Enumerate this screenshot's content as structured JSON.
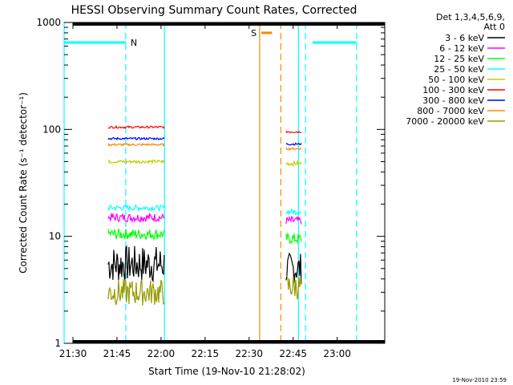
{
  "chart_data": {
    "type": "line",
    "title": "HESSI Observing Summary Count Rates, Corrected",
    "xlabel": "Start Time (19-Nov-10 21:28:02)",
    "ylabel": "Corrected Count Rate (s⁻¹ detector⁻¹)",
    "yscale": "log",
    "ylim": [
      1,
      1000
    ],
    "xlim_minutes": [
      21.45,
      23.27
    ],
    "xticks": [
      "21:30",
      "21:45",
      "22:00",
      "22:15",
      "22:30",
      "22:45",
      "23:00"
    ],
    "xtick_values": [
      21.5,
      21.75,
      22.0,
      22.25,
      22.5,
      22.75,
      23.0
    ],
    "yticks": [
      "1",
      "10",
      "100",
      "1000"
    ],
    "ytick_values": [
      1,
      10,
      100,
      1000
    ],
    "legend_header": [
      "Det 1,3,4,5,6,9,",
      "Att 0"
    ],
    "legend_position": "right",
    "series": [
      {
        "name": "3 - 6 keV",
        "color": "#000000",
        "segments": [
          {
            "x": [
              21.7,
              22.02
            ],
            "y": 5.5,
            "noise": 0.35
          },
          {
            "x": [
              22.71,
              22.8
            ],
            "y": 5.0,
            "noise": 0.3
          }
        ]
      },
      {
        "name": "6 - 12 keV",
        "color": "#ff00ff",
        "segments": [
          {
            "x": [
              21.7,
              22.02
            ],
            "y": 15,
            "noise": 0.08
          },
          {
            "x": [
              22.71,
              22.8
            ],
            "y": 14,
            "noise": 0.08
          }
        ]
      },
      {
        "name": "12 - 25 keV",
        "color": "#00ff00",
        "segments": [
          {
            "x": [
              21.7,
              22.02
            ],
            "y": 10.5,
            "noise": 0.1
          },
          {
            "x": [
              22.71,
              22.8
            ],
            "y": 9.5,
            "noise": 0.1
          }
        ]
      },
      {
        "name": "25 - 50 keV",
        "color": "#00ffff",
        "segments": [
          {
            "x": [
              21.7,
              22.02
            ],
            "y": 18.5,
            "noise": 0.05
          },
          {
            "x": [
              22.71,
              22.8
            ],
            "y": 17,
            "noise": 0.05
          }
        ]
      },
      {
        "name": "50 - 100 keV",
        "color": "#cccc00",
        "segments": [
          {
            "x": [
              21.7,
              22.02
            ],
            "y": 50,
            "noise": 0.03
          },
          {
            "x": [
              22.71,
              22.8
            ],
            "y": 48,
            "noise": 0.04
          }
        ]
      },
      {
        "name": "100 - 300 keV",
        "color": "#ff0000",
        "segments": [
          {
            "x": [
              21.7,
              22.02
            ],
            "y": 105,
            "noise": 0.02
          },
          {
            "x": [
              22.71,
              22.8
            ],
            "y": 95,
            "noise": 0.02
          }
        ]
      },
      {
        "name": "300 - 800 keV",
        "color": "#0000ff",
        "segments": [
          {
            "x": [
              21.7,
              22.02
            ],
            "y": 82,
            "noise": 0.02
          },
          {
            "x": [
              22.71,
              22.8
            ],
            "y": 73,
            "noise": 0.02
          }
        ]
      },
      {
        "name": "800 - 7000 keV",
        "color": "#ff8800",
        "segments": [
          {
            "x": [
              21.7,
              22.02
            ],
            "y": 72,
            "noise": 0.02
          },
          {
            "x": [
              22.71,
              22.8
            ],
            "y": 66,
            "noise": 0.02
          }
        ]
      },
      {
        "name": "7000 - 20000 keV",
        "color": "#999900",
        "segments": [
          {
            "x": [
              21.7,
              22.02
            ],
            "y": 3.0,
            "noise": 0.25
          },
          {
            "x": [
              22.71,
              22.8
            ],
            "y": 3.4,
            "noise": 0.25
          }
        ]
      }
    ],
    "annotations": [
      {
        "label": "N",
        "color": "#ff00ff"
      },
      {
        "label": "S",
        "color": "#ff8800"
      }
    ],
    "flags": [
      {
        "kind": "night",
        "color": "#00ffff",
        "x": [
          21.45,
          21.8
        ],
        "y": 650
      },
      {
        "kind": "night",
        "color": "#00ffff",
        "x": [
          22.86,
          23.11
        ],
        "y": 650
      },
      {
        "kind": "saa",
        "color": "#ff8800",
        "x": [
          22.57,
          22.63
        ],
        "y": 800
      }
    ],
    "vlines": [
      {
        "x": 21.45,
        "color": "#00ffff",
        "dash": false
      },
      {
        "x": 21.8,
        "color": "#00ffff",
        "dash": true
      },
      {
        "x": 22.02,
        "color": "#00ffff",
        "dash": false
      },
      {
        "x": 22.56,
        "color": "#ff8800",
        "dash": false
      },
      {
        "x": 22.68,
        "color": "#ff8800",
        "dash": true
      },
      {
        "x": 22.78,
        "color": "#00ffff",
        "dash": false
      },
      {
        "x": 22.82,
        "color": "#00ffff",
        "dash": true
      },
      {
        "x": 23.11,
        "color": "#00ffff",
        "dash": true
      }
    ],
    "footer": "19-Nov-2010 23:59"
  }
}
